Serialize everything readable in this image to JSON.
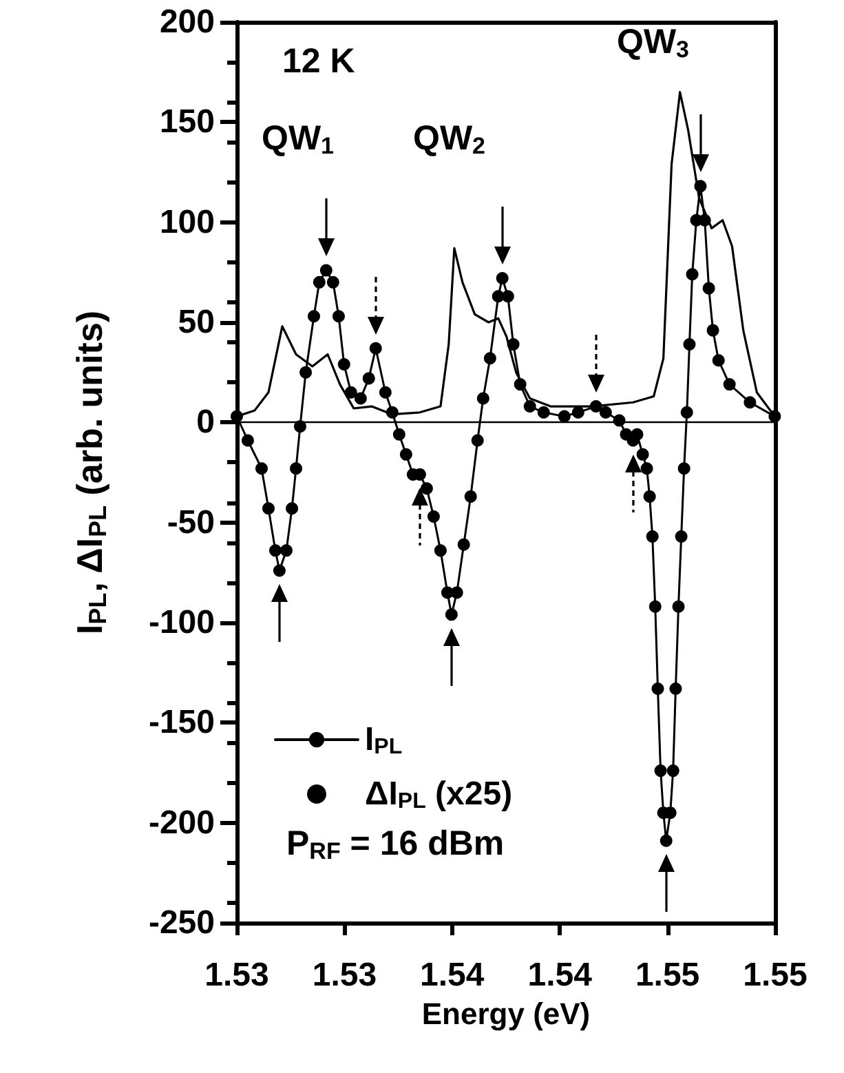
{
  "chart_data": {
    "type": "line",
    "xlabel": "Energy (eV)",
    "ylabel": "I$_{PL}$, ΔI$_{PL}$ (arb. units)",
    "xlim": [
      1.526,
      1.551
    ],
    "xticks": [
      {
        "value": 1.526,
        "label": "1.53"
      },
      {
        "value": 1.531,
        "label": "1.53"
      },
      {
        "value": 1.536,
        "label": "1.54"
      },
      {
        "value": 1.541,
        "label": "1.54"
      },
      {
        "value": 1.546,
        "label": "1.55"
      },
      {
        "value": 1.551,
        "label": "1.55"
      }
    ],
    "ylim": [
      -250,
      200
    ],
    "yticks": [
      -250,
      -200,
      -150,
      -100,
      -50,
      0,
      50,
      100,
      150,
      200
    ],
    "grid": false,
    "legend": "bottom left",
    "annotations": [
      "12 K",
      "QW$_{1}$",
      "QW$_{2}$",
      "QW$_{3}$",
      "P$_{RF}$ = 16 dBm"
    ],
    "ref_lines": [
      {
        "axis": "y",
        "value": 0,
        "label": null,
        "color": "#000000",
        "line_style": "solid"
      }
    ],
    "series": [
      {
        "name": "I$_{PL}$",
        "color": "#000000",
        "marker": "none",
        "line_style": "solid",
        "x": [
          1.526,
          1.52683,
          1.52747,
          1.52811,
          1.52875,
          1.52951,
          1.53022,
          1.53079,
          1.53143,
          1.53226,
          1.53322,
          1.5345,
          1.53546,
          1.53584,
          1.5361,
          1.53648,
          1.53705,
          1.53769,
          1.53814,
          1.53852,
          1.53897,
          1.53961,
          1.54057,
          1.54249,
          1.5444,
          1.54536,
          1.54581,
          1.54619,
          1.54658,
          1.54696,
          1.54747,
          1.54805,
          1.54856,
          1.549,
          1.54952,
          1.55015,
          1.55098
        ],
        "values": [
          3,
          6,
          15,
          48,
          34,
          28,
          34,
          19,
          7,
          8,
          4,
          5,
          8,
          39,
          87,
          70,
          54,
          50,
          52,
          43,
          25,
          12,
          8,
          8,
          10,
          13,
          32,
          129,
          165,
          146,
          112,
          97,
          101,
          88,
          46,
          15,
          3
        ]
      },
      {
        "name": "ΔI$_{PL}$ (x25)",
        "color": "#000000",
        "marker": "circle",
        "line_style": "solid",
        "x": [
          1.526,
          1.52651,
          1.52715,
          1.52747,
          1.52779,
          1.52798,
          1.5283,
          1.52856,
          1.52875,
          1.52894,
          1.5292,
          1.52958,
          1.52983,
          1.53015,
          1.53047,
          1.53073,
          1.53098,
          1.5313,
          1.53175,
          1.53213,
          1.53245,
          1.5329,
          1.53322,
          1.53354,
          1.53386,
          1.53418,
          1.5345,
          1.53482,
          1.53514,
          1.53546,
          1.53578,
          1.53597,
          1.53622,
          1.53654,
          1.53686,
          1.53718,
          1.53744,
          1.53776,
          1.53814,
          1.53833,
          1.53859,
          1.53884,
          1.53916,
          1.53961,
          1.54025,
          1.54121,
          1.54185,
          1.54268,
          1.54313,
          1.54376,
          1.54408,
          1.5444,
          1.54459,
          1.54485,
          1.54504,
          1.54517,
          1.5453,
          1.54543,
          1.54555,
          1.54568,
          1.54581,
          1.54594,
          1.54613,
          1.54626,
          1.54638,
          1.54651,
          1.54664,
          1.54677,
          1.5469,
          1.54702,
          1.54715,
          1.54734,
          1.54753,
          1.54773,
          1.54792,
          1.54811,
          1.54837,
          1.54888,
          1.54983,
          1.55098
        ],
        "values": [
          3,
          -9,
          -23,
          -43,
          -64,
          -74,
          -64,
          -43,
          -23,
          -2,
          25,
          53,
          70,
          76,
          70,
          53,
          29,
          15,
          12,
          22,
          37,
          15,
          5,
          -6,
          -16,
          -26,
          -26,
          -33,
          -47,
          -64,
          -85,
          -96,
          -85,
          -61,
          -37,
          -9,
          12,
          32,
          63,
          72,
          63,
          39,
          19,
          8,
          5,
          3,
          5,
          8,
          5,
          1,
          -6,
          -9,
          -6,
          -16,
          -23,
          -37,
          -57,
          -92,
          -133,
          -174,
          -195,
          -209,
          -195,
          -174,
          -133,
          -92,
          -57,
          -23,
          5,
          39,
          74,
          101,
          118,
          101,
          67,
          46,
          31,
          19,
          10,
          3
        ]
      }
    ]
  }
}
